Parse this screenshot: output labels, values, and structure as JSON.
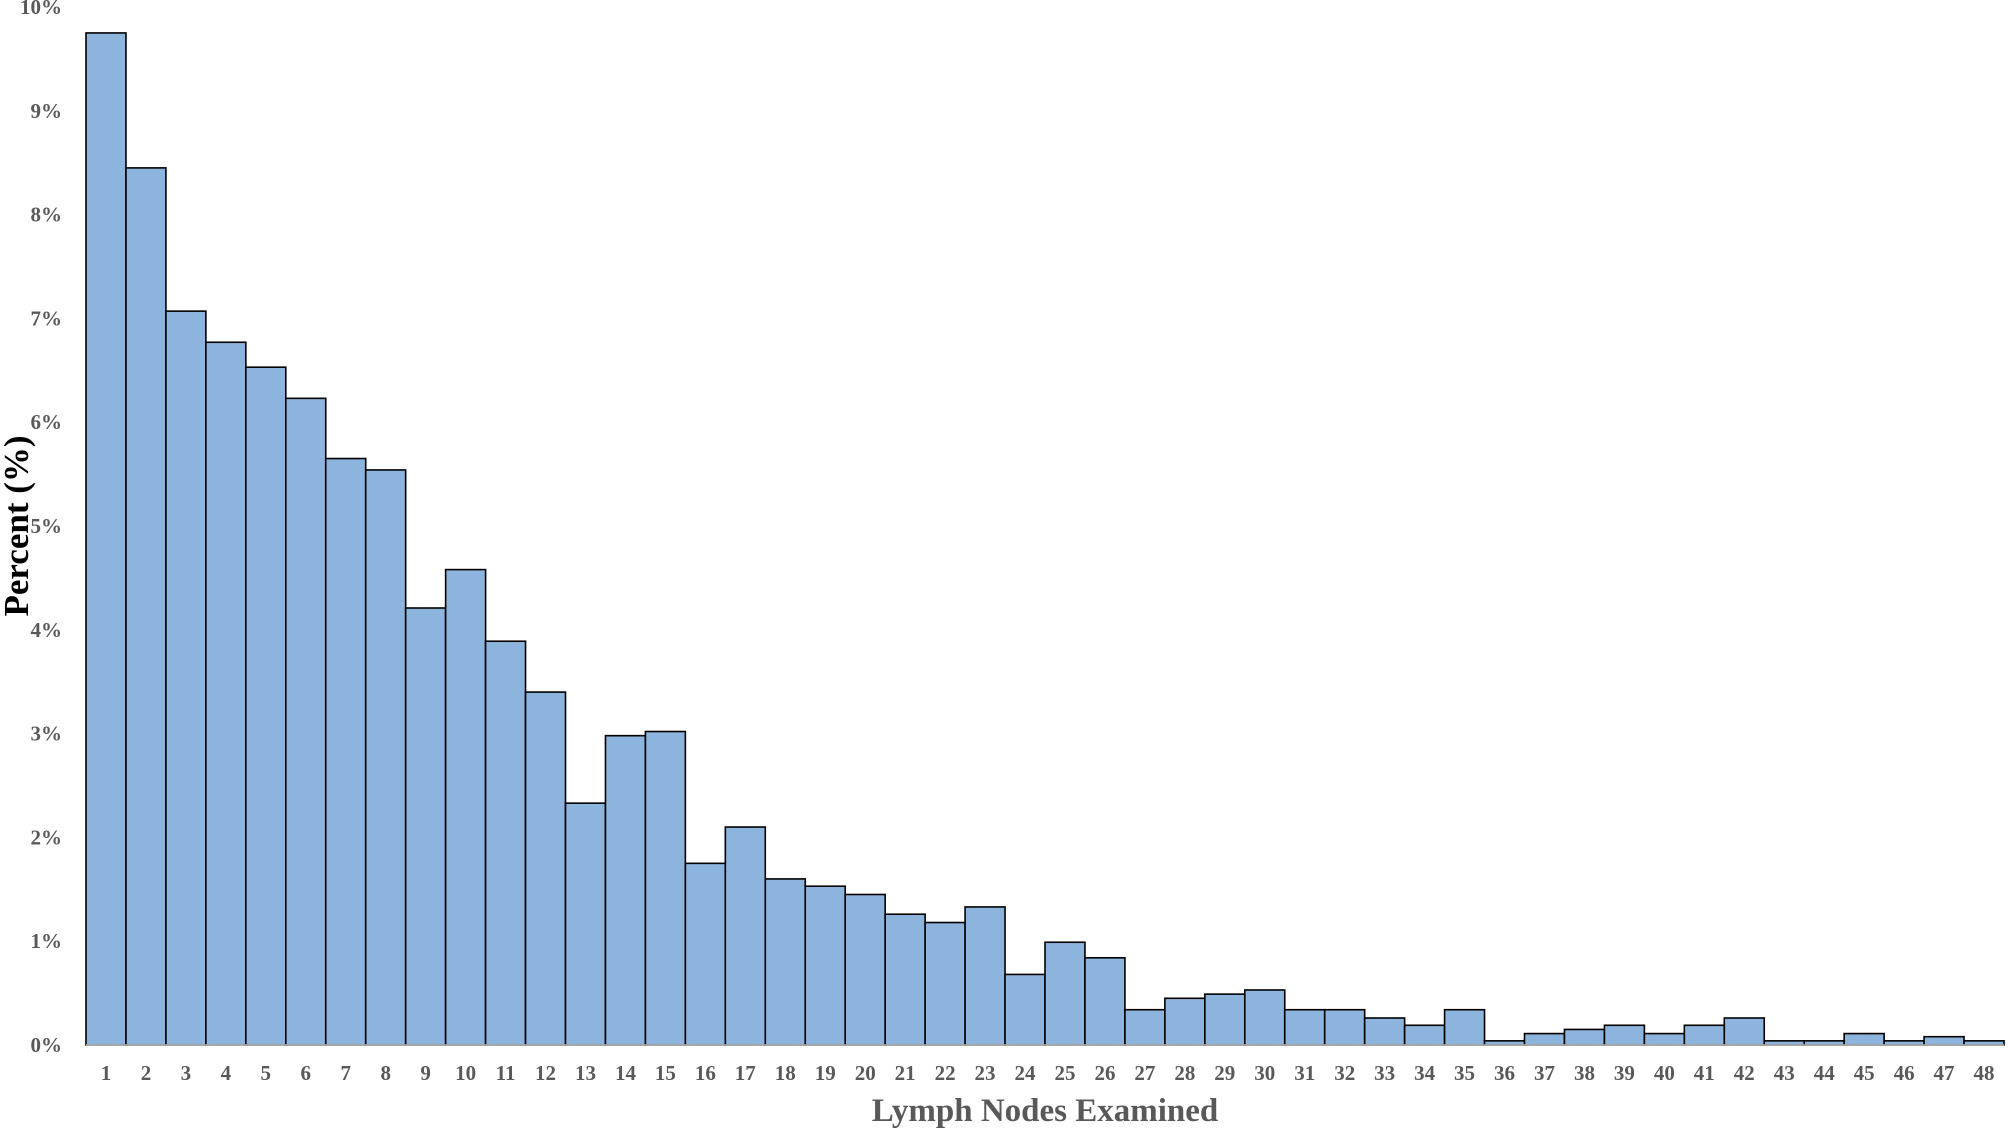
{
  "chart_data": {
    "type": "bar",
    "title": "",
    "xlabel": "Lymph Nodes Examined",
    "ylabel": "Percent (%)",
    "ylim": [
      0,
      10
    ],
    "yticks": [
      0,
      1,
      2,
      3,
      4,
      5,
      6,
      7,
      8,
      9,
      10
    ],
    "ytick_labels": [
      "0%",
      "1%",
      "2%",
      "3%",
      "4%",
      "5%",
      "6%",
      "7%",
      "8%",
      "9%",
      "10%"
    ],
    "grid": false,
    "legend": "none",
    "categories": [
      "1",
      "2",
      "3",
      "4",
      "5",
      "6",
      "7",
      "8",
      "9",
      "10",
      "11",
      "12",
      "13",
      "14",
      "15",
      "16",
      "17",
      "18",
      "19",
      "20",
      "21",
      "22",
      "23",
      "24",
      "25",
      "26",
      "27",
      "28",
      "29",
      "30",
      "31",
      "32",
      "33",
      "34",
      "35",
      "36",
      "37",
      "38",
      "39",
      "40",
      "41",
      "42",
      "43",
      "44",
      "45",
      "46",
      "47",
      "48"
    ],
    "values": [
      9.75,
      8.45,
      7.07,
      6.77,
      6.53,
      6.23,
      5.65,
      5.54,
      4.21,
      4.58,
      3.89,
      3.4,
      2.33,
      2.98,
      3.02,
      1.75,
      2.1,
      1.6,
      1.53,
      1.45,
      1.26,
      1.18,
      1.33,
      0.68,
      0.99,
      0.84,
      0.34,
      0.45,
      0.49,
      0.53,
      0.34,
      0.34,
      0.26,
      0.19,
      0.34,
      0.04,
      0.11,
      0.15,
      0.19,
      0.11,
      0.19,
      0.26,
      0.04,
      0.04,
      0.11,
      0.04,
      0.08,
      0.04
    ]
  },
  "colors": {
    "bar_fill": "#8db4dc",
    "bar_stroke": "#000000",
    "tick_text": "#595959",
    "xlabel_text": "#595959",
    "ylabel_text": "#000000"
  }
}
